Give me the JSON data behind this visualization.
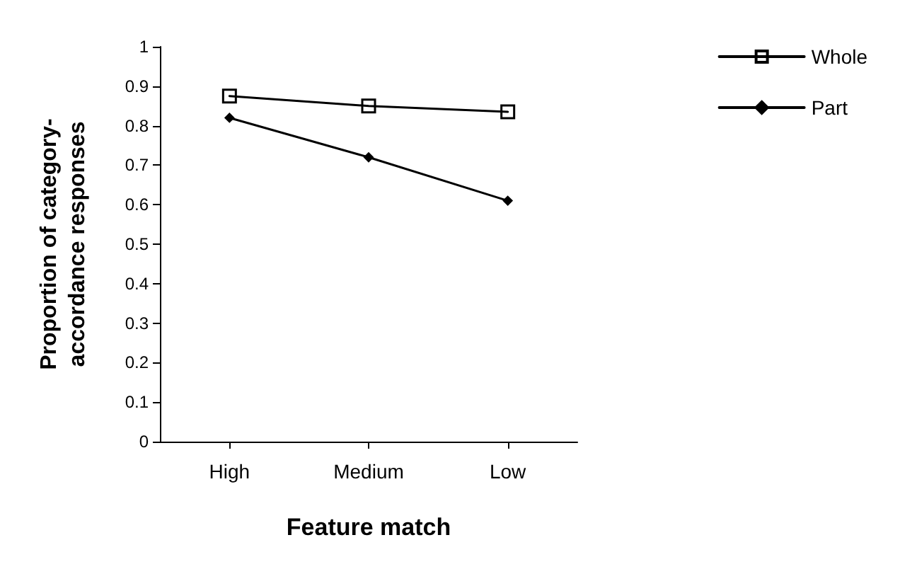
{
  "chart_data": {
    "type": "line",
    "xlabel": "Feature match",
    "ylabel": "Proportion of category-\naccordance responses",
    "categories": [
      "High",
      "Medium",
      "Low"
    ],
    "series": [
      {
        "name": "Whole",
        "color": "#000000",
        "marker": "square",
        "values": [
          0.875,
          0.85,
          0.835
        ]
      },
      {
        "name": "Part",
        "color": "#000000",
        "marker": "diamond",
        "values": [
          0.82,
          0.72,
          0.61
        ]
      }
    ],
    "ylim": [
      0,
      1
    ],
    "yticks": [
      0,
      0.1,
      0.2,
      0.3,
      0.4,
      0.5,
      0.6,
      0.7,
      0.8,
      0.9,
      1
    ],
    "grid": false,
    "legend": "right",
    "line_style": "solid"
  }
}
